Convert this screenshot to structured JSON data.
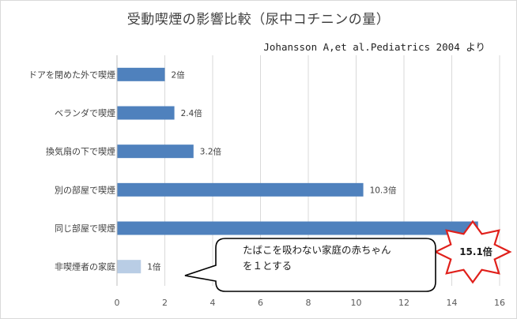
{
  "chart_data": {
    "type": "bar",
    "orientation": "horizontal",
    "title": "受動喫煙の影響比較（尿中コチニンの量）",
    "source": "Johansson A,et al.Pediatrics 2004 より",
    "categories": [
      "ドアを閉めた外で喫煙",
      "ベランダで喫煙",
      "換気扇の下で喫煙",
      "別の部屋で喫煙",
      "同じ部屋で喫煙",
      "非喫煙者の家庭"
    ],
    "values": [
      2,
      2.4,
      3.2,
      10.3,
      15.1,
      1
    ],
    "data_labels": [
      "2倍",
      "2.4倍",
      "3.2倍",
      "10.3倍",
      "",
      "1倍"
    ],
    "xlim": [
      0,
      16
    ],
    "xticks": [
      "0",
      "2",
      "4",
      "6",
      "8",
      "10",
      "12",
      "14",
      "16"
    ],
    "grid": true,
    "colors": {
      "bar": "#4f81bd",
      "baseline_bar": "#b9cde5",
      "star_outline": "#e0201b"
    },
    "annotations": {
      "callout": [
        "たばこを吸わない家庭の赤ちゃん",
        "を１とする"
      ],
      "highlight": "15.1倍"
    }
  }
}
